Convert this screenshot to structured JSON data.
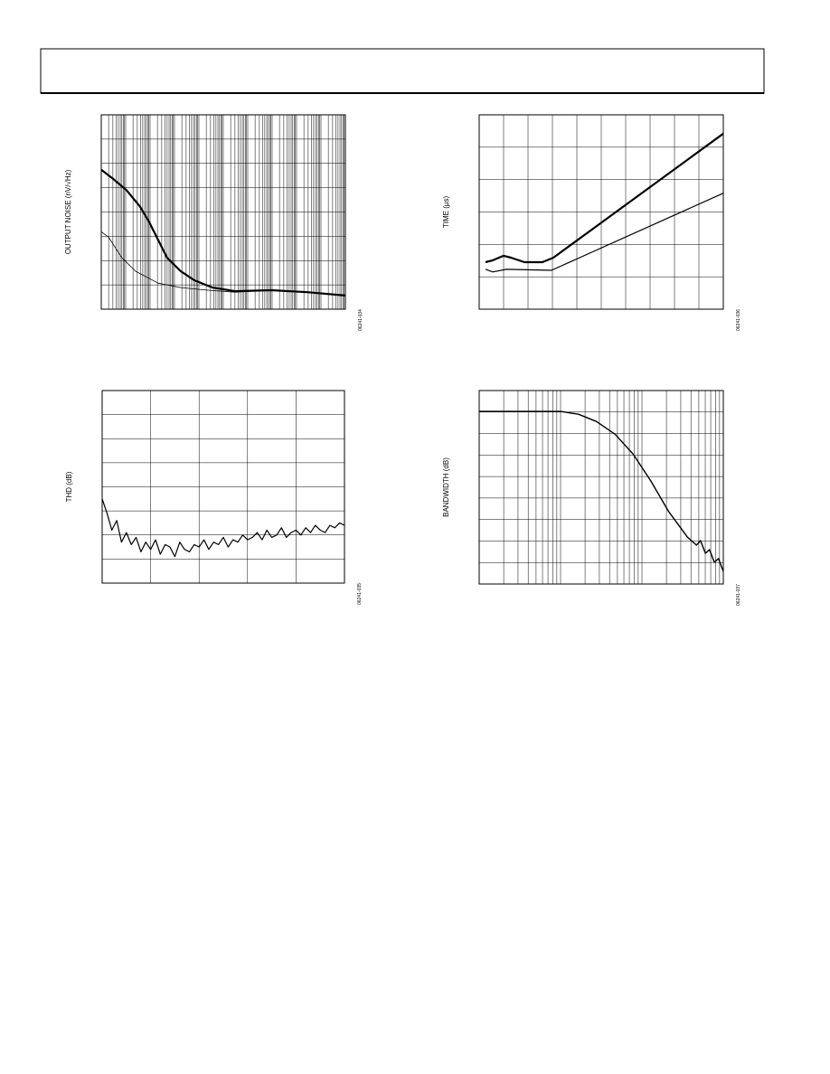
{
  "chart_data": [
    {
      "type": "line",
      "y_label": "OUTPUT NOISE (nV/√Hz)",
      "figure_code": "06241-034",
      "xlim": [
        0,
        10
      ],
      "ylim": [
        0,
        8
      ],
      "grid": true,
      "x_grid": "log",
      "series": [
        {
          "color": "#000000",
          "line_width": 2.2,
          "x": [
            0,
            0.48,
            1.04,
            1.59,
            1.96,
            2.33,
            2.7,
            3.26,
            3.81,
            4.56,
            5.48,
            6.96,
            8.44,
            10
          ],
          "values": [
            5.74,
            5.37,
            4.89,
            4.22,
            3.59,
            2.85,
            2.11,
            1.56,
            1.19,
            0.89,
            0.74,
            0.78,
            0.7,
            0.56
          ]
        },
        {
          "color": "#000000",
          "line_width": 0.8,
          "x": [
            0,
            0.3,
            0.85,
            1.41,
            2.33,
            3.26,
            4.37,
            5.48,
            6.96,
            8.44,
            10
          ],
          "values": [
            3.19,
            2.96,
            2.11,
            1.56,
            1.07,
            0.89,
            0.78,
            0.7,
            0.78,
            0.7,
            0.56
          ]
        }
      ]
    },
    {
      "type": "line",
      "y_label": "TIME (µs)",
      "figure_code": "06241-036",
      "xlim": [
        0,
        10
      ],
      "ylim": [
        0,
        6
      ],
      "grid": true,
      "x_grid": "linear",
      "series": [
        {
          "color": "#000000",
          "line_width": 2.2,
          "x": [
            0.26,
            0.56,
            1.0,
            1.3,
            1.85,
            2.59,
            3.04,
            10
          ],
          "values": [
            1.45,
            1.51,
            1.65,
            1.59,
            1.45,
            1.45,
            1.59,
            5.42
          ]
        },
        {
          "color": "#000000",
          "line_width": 1.2,
          "x": [
            0.26,
            0.56,
            1.11,
            2.96,
            10
          ],
          "values": [
            1.23,
            1.15,
            1.23,
            1.2,
            3.58
          ]
        }
      ]
    },
    {
      "type": "line",
      "y_label": "THD (dB)",
      "figure_code": "06241-035",
      "xlim": [
        0,
        5
      ],
      "ylim": [
        0,
        8
      ],
      "grid": true,
      "x_grid": "linear",
      "series": [
        {
          "color": "#000000",
          "line_width": 1.2,
          "x": [
            0,
            0.1,
            0.2,
            0.3,
            0.4,
            0.5,
            0.6,
            0.7,
            0.8,
            0.9,
            1,
            1.1,
            1.2,
            1.3,
            1.4,
            1.5,
            1.6,
            1.7,
            1.8,
            1.9,
            2,
            2.1,
            2.2,
            2.3,
            2.4,
            2.5,
            2.6,
            2.7,
            2.8,
            2.9,
            3,
            3.1,
            3.2,
            3.3,
            3.4,
            3.5,
            3.6,
            3.7,
            3.8,
            3.9,
            4,
            4.1,
            4.2,
            4.3,
            4.4,
            4.5,
            4.6,
            4.7,
            4.8,
            4.9,
            5
          ],
          "values": [
            3.5,
            2.9,
            2.2,
            2.6,
            1.7,
            2.1,
            1.6,
            1.9,
            1.3,
            1.7,
            1.4,
            1.8,
            1.2,
            1.6,
            1.5,
            1.1,
            1.7,
            1.4,
            1.3,
            1.6,
            1.5,
            1.8,
            1.4,
            1.7,
            1.6,
            1.9,
            1.5,
            1.8,
            1.7,
            2.0,
            1.8,
            1.9,
            2.1,
            1.8,
            2.2,
            1.9,
            2.0,
            2.3,
            1.9,
            2.1,
            2.2,
            2.0,
            2.3,
            2.1,
            2.4,
            2.2,
            2.1,
            2.4,
            2.3,
            2.5,
            2.4
          ]
        }
      ]
    },
    {
      "type": "line",
      "y_label": "BANDWIDTH (dB)",
      "figure_code": "06241-037",
      "xlim": [
        0,
        3
      ],
      "ylim": [
        0,
        9
      ],
      "grid": true,
      "x_grid": "log",
      "series": [
        {
          "color": "#000000",
          "line_width": 1.4,
          "x": [
            0,
            1,
            1.22,
            1.44,
            1.67,
            1.89,
            2.11,
            2.33,
            2.56,
            2.67,
            2.72,
            2.78,
            2.83,
            2.89,
            2.94,
            3
          ],
          "values": [
            8.03,
            8.03,
            7.9,
            7.56,
            6.97,
            6.05,
            4.79,
            3.36,
            2.18,
            1.81,
            2.02,
            1.43,
            1.6,
            1.01,
            1.18,
            0.59
          ]
        }
      ]
    }
  ]
}
